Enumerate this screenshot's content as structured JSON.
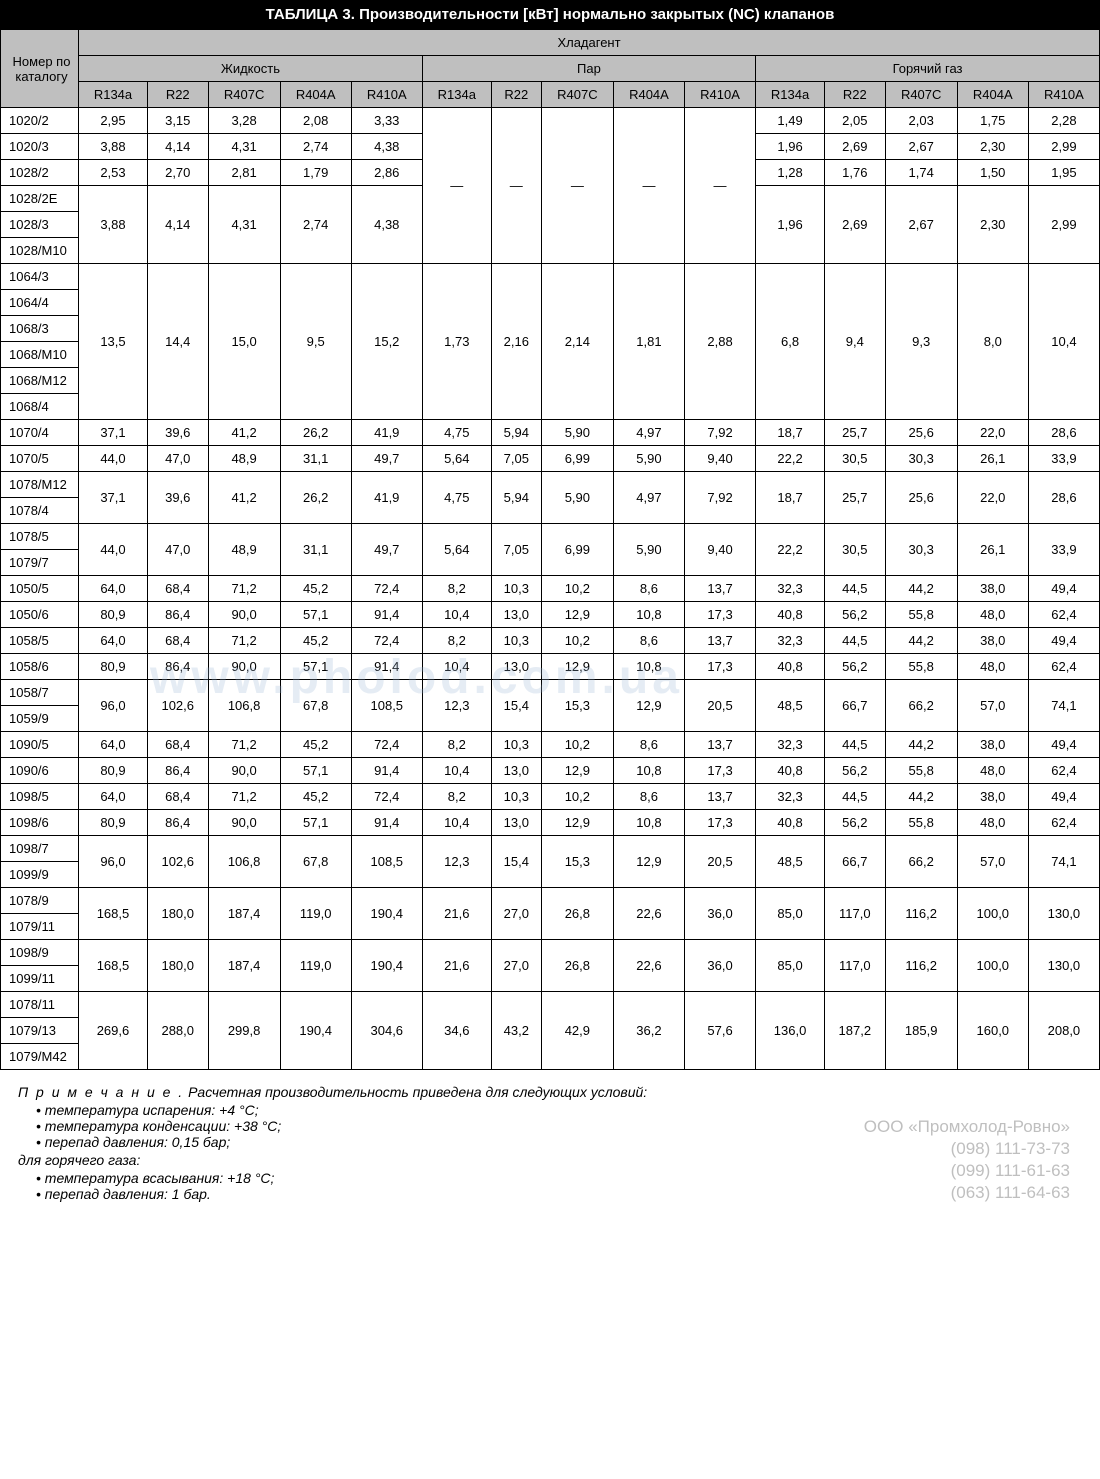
{
  "title": "ТАБЛИЦА 3. Производительности [кВт] нормально закрытых (NC) клапанов",
  "headers": {
    "catalog": "Номер по каталогу",
    "refrigerant": "Хладагент",
    "groups": [
      "Жидкость",
      "Пар",
      "Горячий газ"
    ],
    "refs": [
      "R134a",
      "R22",
      "R407C",
      "R404A",
      "R410A"
    ]
  },
  "rows": [
    {
      "ids": [
        "1020/2"
      ],
      "liq": [
        "2,95",
        "3,15",
        "3,28",
        "2,08",
        "3,33"
      ],
      "vap": "dash5",
      "hot": [
        "1,49",
        "2,05",
        "2,03",
        "1,75",
        "2,28"
      ]
    },
    {
      "ids": [
        "1020/3"
      ],
      "liq": [
        "3,88",
        "4,14",
        "4,31",
        "2,74",
        "4,38"
      ],
      "vap": null,
      "hot": [
        "1,96",
        "2,69",
        "2,67",
        "2,30",
        "2,99"
      ]
    },
    {
      "ids": [
        "1028/2"
      ],
      "liq": [
        "2,53",
        "2,70",
        "2,81",
        "1,79",
        "2,86"
      ],
      "vap": null,
      "hot": [
        "1,28",
        "1,76",
        "1,74",
        "1,50",
        "1,95"
      ]
    },
    {
      "ids": [
        "1028/2E",
        "1028/3",
        "1028/M10"
      ],
      "liq": [
        "3,88",
        "4,14",
        "4,31",
        "2,74",
        "4,38"
      ],
      "vap": null,
      "hot": [
        "1,96",
        "2,69",
        "2,67",
        "2,30",
        "2,99"
      ]
    },
    {
      "ids": [
        "1064/3",
        "1064/4",
        "1068/3",
        "1068/M10",
        "1068/M12",
        "1068/4"
      ],
      "liq": [
        "13,5",
        "14,4",
        "15,0",
        "9,5",
        "15,2"
      ],
      "vap": [
        "1,73",
        "2,16",
        "2,14",
        "1,81",
        "2,88"
      ],
      "hot": [
        "6,8",
        "9,4",
        "9,3",
        "8,0",
        "10,4"
      ]
    },
    {
      "ids": [
        "1070/4"
      ],
      "liq": [
        "37,1",
        "39,6",
        "41,2",
        "26,2",
        "41,9"
      ],
      "vap": [
        "4,75",
        "5,94",
        "5,90",
        "4,97",
        "7,92"
      ],
      "hot": [
        "18,7",
        "25,7",
        "25,6",
        "22,0",
        "28,6"
      ]
    },
    {
      "ids": [
        "1070/5"
      ],
      "liq": [
        "44,0",
        "47,0",
        "48,9",
        "31,1",
        "49,7"
      ],
      "vap": [
        "5,64",
        "7,05",
        "6,99",
        "5,90",
        "9,40"
      ],
      "hot": [
        "22,2",
        "30,5",
        "30,3",
        "26,1",
        "33,9"
      ]
    },
    {
      "ids": [
        "1078/M12",
        "1078/4"
      ],
      "liq": [
        "37,1",
        "39,6",
        "41,2",
        "26,2",
        "41,9"
      ],
      "vap": [
        "4,75",
        "5,94",
        "5,90",
        "4,97",
        "7,92"
      ],
      "hot": [
        "18,7",
        "25,7",
        "25,6",
        "22,0",
        "28,6"
      ]
    },
    {
      "ids": [
        "1078/5",
        "1079/7"
      ],
      "liq": [
        "44,0",
        "47,0",
        "48,9",
        "31,1",
        "49,7"
      ],
      "vap": [
        "5,64",
        "7,05",
        "6,99",
        "5,90",
        "9,40"
      ],
      "hot": [
        "22,2",
        "30,5",
        "30,3",
        "26,1",
        "33,9"
      ]
    },
    {
      "ids": [
        "1050/5"
      ],
      "liq": [
        "64,0",
        "68,4",
        "71,2",
        "45,2",
        "72,4"
      ],
      "vap": [
        "8,2",
        "10,3",
        "10,2",
        "8,6",
        "13,7"
      ],
      "hot": [
        "32,3",
        "44,5",
        "44,2",
        "38,0",
        "49,4"
      ]
    },
    {
      "ids": [
        "1050/6"
      ],
      "liq": [
        "80,9",
        "86,4",
        "90,0",
        "57,1",
        "91,4"
      ],
      "vap": [
        "10,4",
        "13,0",
        "12,9",
        "10,8",
        "17,3"
      ],
      "hot": [
        "40,8",
        "56,2",
        "55,8",
        "48,0",
        "62,4"
      ]
    },
    {
      "ids": [
        "1058/5"
      ],
      "liq": [
        "64,0",
        "68,4",
        "71,2",
        "45,2",
        "72,4"
      ],
      "vap": [
        "8,2",
        "10,3",
        "10,2",
        "8,6",
        "13,7"
      ],
      "hot": [
        "32,3",
        "44,5",
        "44,2",
        "38,0",
        "49,4"
      ]
    },
    {
      "ids": [
        "1058/6"
      ],
      "liq": [
        "80,9",
        "86,4",
        "90,0",
        "57,1",
        "91,4"
      ],
      "vap": [
        "10,4",
        "13,0",
        "12,9",
        "10,8",
        "17,3"
      ],
      "hot": [
        "40,8",
        "56,2",
        "55,8",
        "48,0",
        "62,4"
      ]
    },
    {
      "ids": [
        "1058/7",
        "1059/9"
      ],
      "liq": [
        "96,0",
        "102,6",
        "106,8",
        "67,8",
        "108,5"
      ],
      "vap": [
        "12,3",
        "15,4",
        "15,3",
        "12,9",
        "20,5"
      ],
      "hot": [
        "48,5",
        "66,7",
        "66,2",
        "57,0",
        "74,1"
      ]
    },
    {
      "ids": [
        "1090/5"
      ],
      "liq": [
        "64,0",
        "68,4",
        "71,2",
        "45,2",
        "72,4"
      ],
      "vap": [
        "8,2",
        "10,3",
        "10,2",
        "8,6",
        "13,7"
      ],
      "hot": [
        "32,3",
        "44,5",
        "44,2",
        "38,0",
        "49,4"
      ]
    },
    {
      "ids": [
        "1090/6"
      ],
      "liq": [
        "80,9",
        "86,4",
        "90,0",
        "57,1",
        "91,4"
      ],
      "vap": [
        "10,4",
        "13,0",
        "12,9",
        "10,8",
        "17,3"
      ],
      "hot": [
        "40,8",
        "56,2",
        "55,8",
        "48,0",
        "62,4"
      ]
    },
    {
      "ids": [
        "1098/5"
      ],
      "liq": [
        "64,0",
        "68,4",
        "71,2",
        "45,2",
        "72,4"
      ],
      "vap": [
        "8,2",
        "10,3",
        "10,2",
        "8,6",
        "13,7"
      ],
      "hot": [
        "32,3",
        "44,5",
        "44,2",
        "38,0",
        "49,4"
      ]
    },
    {
      "ids": [
        "1098/6"
      ],
      "liq": [
        "80,9",
        "86,4",
        "90,0",
        "57,1",
        "91,4"
      ],
      "vap": [
        "10,4",
        "13,0",
        "12,9",
        "10,8",
        "17,3"
      ],
      "hot": [
        "40,8",
        "56,2",
        "55,8",
        "48,0",
        "62,4"
      ]
    },
    {
      "ids": [
        "1098/7",
        "1099/9"
      ],
      "liq": [
        "96,0",
        "102,6",
        "106,8",
        "67,8",
        "108,5"
      ],
      "vap": [
        "12,3",
        "15,4",
        "15,3",
        "12,9",
        "20,5"
      ],
      "hot": [
        "48,5",
        "66,7",
        "66,2",
        "57,0",
        "74,1"
      ]
    },
    {
      "ids": [
        "1078/9",
        "1079/11"
      ],
      "liq": [
        "168,5",
        "180,0",
        "187,4",
        "119,0",
        "190,4"
      ],
      "vap": [
        "21,6",
        "27,0",
        "26,8",
        "22,6",
        "36,0"
      ],
      "hot": [
        "85,0",
        "117,0",
        "116,2",
        "100,0",
        "130,0"
      ]
    },
    {
      "ids": [
        "1098/9",
        "1099/11"
      ],
      "liq": [
        "168,5",
        "180,0",
        "187,4",
        "119,0",
        "190,4"
      ],
      "vap": [
        "21,6",
        "27,0",
        "26,8",
        "22,6",
        "36,0"
      ],
      "hot": [
        "85,0",
        "117,0",
        "116,2",
        "100,0",
        "130,0"
      ]
    },
    {
      "ids": [
        "1078/11",
        "1079/13",
        "1079/M42"
      ],
      "liq": [
        "269,6",
        "288,0",
        "299,8",
        "190,4",
        "304,6"
      ],
      "vap": [
        "34,6",
        "43,2",
        "42,9",
        "36,2",
        "57,6"
      ],
      "hot": [
        "136,0",
        "187,2",
        "185,9",
        "160,0",
        "208,0"
      ]
    }
  ],
  "dash_rowspan_total": 6,
  "notes": {
    "title_spaced": "П р и м е ч а н и е .",
    "intro": "Расчетная производительность приведена для следующих условий:",
    "bullets1": [
      "температура испарения: +4 °C;",
      "температура конденсации: +38 °C;",
      "перепад давления: 0,15 бар;"
    ],
    "hotgas_label": "для горячего газа:",
    "bullets2": [
      "температура всасывания: +18 °C;",
      "перепад давления: 1 бар."
    ]
  },
  "company": {
    "name": "ООО «Промхолод-Ровно»",
    "phones": [
      "(098) 111-73-73",
      "(099) 111-61-63",
      "(063) 111-64-63"
    ]
  },
  "watermark": "www.pholod.com.ua"
}
